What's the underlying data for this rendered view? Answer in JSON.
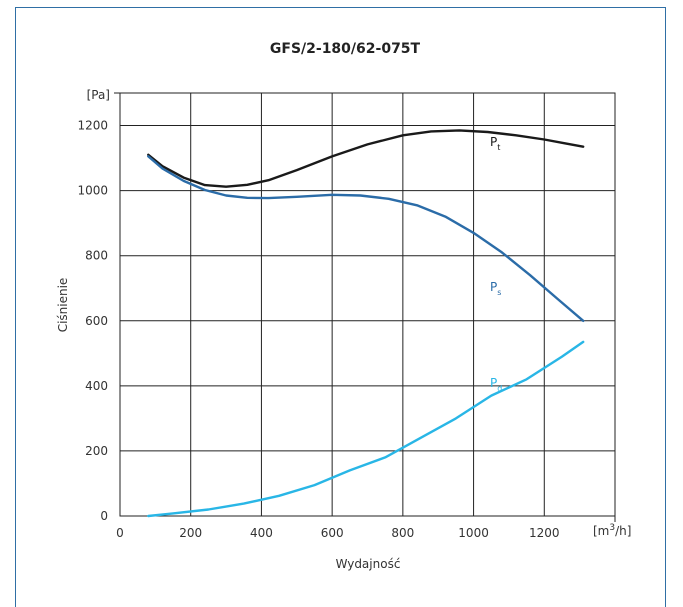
{
  "chart_data": {
    "type": "line",
    "title": "GFS/2-180/62-075T",
    "xlabel": "Wydajność",
    "ylabel": "Ciśnienie",
    "x_unit": {
      "base": "[m",
      "sup": "3",
      "tail": "/h]"
    },
    "y_unit": "[Pa]",
    "xlim": [
      0,
      1400
    ],
    "ylim": [
      0,
      1300
    ],
    "x_ticks": [
      0,
      200,
      400,
      600,
      800,
      1000,
      1200
    ],
    "y_ticks": [
      0,
      200,
      400,
      600,
      800,
      1000,
      1200
    ],
    "grid": true,
    "series": [
      {
        "name": "Pt",
        "label_main": "P",
        "label_sub": "t",
        "color": "#1a1a1a",
        "x": [
          80,
          120,
          180,
          240,
          300,
          360,
          420,
          500,
          600,
          700,
          800,
          880,
          960,
          1040,
          1120,
          1200,
          1260,
          1310
        ],
        "y": [
          1110,
          1075,
          1040,
          1017,
          1012,
          1018,
          1032,
          1063,
          1105,
          1142,
          1170,
          1182,
          1185,
          1180,
          1170,
          1157,
          1145,
          1135
        ]
      },
      {
        "name": "Ps",
        "label_main": "P",
        "label_sub": "s",
        "color": "#2b6ca8",
        "x": [
          80,
          120,
          180,
          240,
          300,
          360,
          420,
          500,
          600,
          680,
          760,
          840,
          920,
          1000,
          1080,
          1160,
          1240,
          1310
        ],
        "y": [
          1105,
          1068,
          1030,
          1002,
          985,
          978,
          977,
          981,
          987,
          985,
          975,
          955,
          920,
          870,
          810,
          740,
          665,
          600
        ]
      },
      {
        "name": "Pd",
        "label_main": "P",
        "label_sub": "d",
        "color": "#29b6e6",
        "x": [
          80,
          150,
          250,
          350,
          450,
          550,
          650,
          750,
          850,
          950,
          1050,
          1150,
          1250,
          1310
        ],
        "y": [
          0,
          8,
          20,
          38,
          62,
          95,
          140,
          180,
          240,
          300,
          370,
          420,
          490,
          535
        ]
      }
    ]
  }
}
